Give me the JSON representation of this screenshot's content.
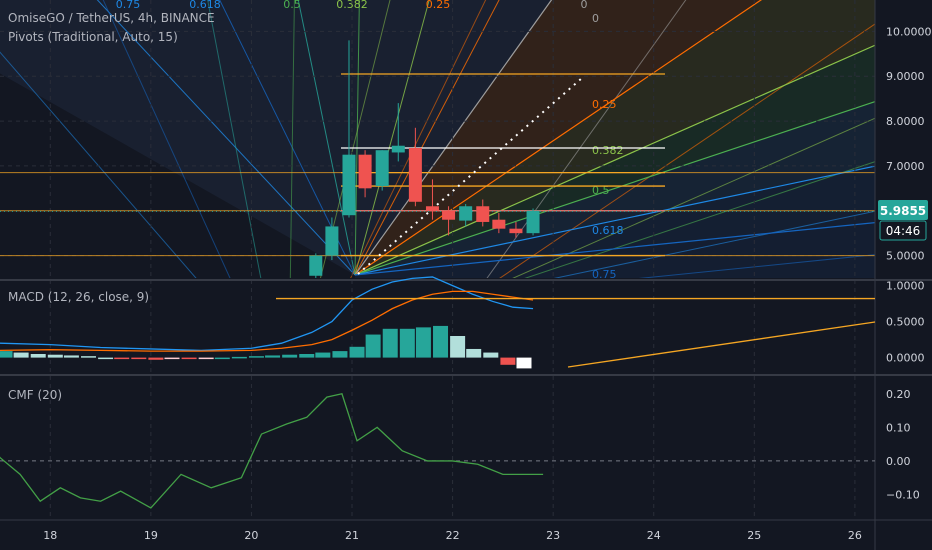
{
  "header": {
    "symbol_line": "OmiseGO / TetherUS, 4h, BINANCE",
    "pivots_line": "Pivots (Traditional, Auto, 15)"
  },
  "price_axis": {
    "ticks": [
      "10.0000",
      "9.0000",
      "8.0000",
      "7.0000",
      "6.0000",
      "5.0000"
    ],
    "last_price": "5.9855",
    "countdown": "04:46"
  },
  "macd_panel": {
    "title": "MACD (12, 26, close, 9)",
    "ticks": [
      "1.0000",
      "0.5000",
      "0.0000"
    ]
  },
  "cmf_panel": {
    "title": "CMF (20)",
    "ticks": [
      "0.20",
      "0.10",
      "0.00",
      "−0.10"
    ]
  },
  "time_axis": {
    "ticks": [
      "18",
      "19",
      "20",
      "21",
      "22",
      "23",
      "24",
      "25",
      "26"
    ]
  },
  "fib_fan_top_labels": [
    "0.75",
    "0.618",
    "0.5",
    "0.382",
    "0.25",
    "0"
  ],
  "fib_fan_right_labels": [
    "0",
    "0.25",
    "0.382",
    "0.5",
    "0.618",
    "0.75"
  ],
  "colors": {
    "background": "#131722",
    "bull": "#26a69a",
    "bear": "#ef5350",
    "pivot_line": "#f5a623",
    "cmf_line": "#43a047",
    "macd_line": "#2196f3",
    "signal_line": "#ff6d00",
    "last_price_bg": "#26a69a"
  },
  "chart_data": [
    {
      "type": "candlestick",
      "title": "OmiseGO / TetherUS, 4h, BINANCE",
      "x_range": [
        17.5,
        26.2
      ],
      "ylim": [
        4.5,
        10.7
      ],
      "last_price": 5.9855,
      "candles": [
        {
          "x": 20.64,
          "o": 4.55,
          "h": 5.05,
          "c": 5.0,
          "l": 4.5
        },
        {
          "x": 20.8,
          "o": 5.0,
          "h": 5.85,
          "c": 5.65,
          "l": 4.9
        },
        {
          "x": 20.97,
          "o": 5.9,
          "h": 9.8,
          "c": 7.25,
          "l": 5.85
        },
        {
          "x": 21.13,
          "o": 7.25,
          "h": 7.35,
          "c": 6.5,
          "l": 6.3
        },
        {
          "x": 21.3,
          "o": 6.55,
          "h": 7.35,
          "c": 7.35,
          "l": 6.45
        },
        {
          "x": 21.46,
          "o": 7.3,
          "h": 8.4,
          "c": 7.45,
          "l": 7.1
        },
        {
          "x": 21.63,
          "o": 7.4,
          "h": 7.85,
          "c": 6.2,
          "l": 6.1
        },
        {
          "x": 21.8,
          "o": 6.1,
          "h": 6.7,
          "c": 6.0,
          "l": 5.8
        },
        {
          "x": 21.96,
          "o": 6.0,
          "h": 6.1,
          "c": 5.8,
          "l": 5.45
        },
        {
          "x": 22.13,
          "o": 5.78,
          "h": 6.15,
          "c": 6.1,
          "l": 5.65
        },
        {
          "x": 22.3,
          "o": 6.1,
          "h": 6.25,
          "c": 5.75,
          "l": 5.65
        },
        {
          "x": 22.46,
          "o": 5.8,
          "h": 5.95,
          "c": 5.6,
          "l": 5.5
        },
        {
          "x": 22.63,
          "o": 5.6,
          "h": 5.75,
          "c": 5.5,
          "l": 5.4
        },
        {
          "x": 22.8,
          "o": 5.5,
          "h": 6.05,
          "c": 6.0,
          "l": 5.45
        }
      ],
      "pivot_levels": [
        9.05,
        7.4,
        6.85,
        6.55,
        6.0,
        5.0
      ]
    },
    {
      "type": "line",
      "title": "MACD (12, 26, close, 9)",
      "ylim": [
        -0.2,
        1.05
      ],
      "series": [
        {
          "kind": "macd",
          "x": [
            17.5,
            18.0,
            18.5,
            19.0,
            19.5,
            20.0,
            20.3,
            20.6,
            20.8,
            21.0,
            21.2,
            21.4,
            21.6,
            21.8,
            22.0,
            22.2,
            22.4,
            22.6,
            22.8
          ],
          "values": [
            0.2,
            0.18,
            0.14,
            0.12,
            0.1,
            0.13,
            0.2,
            0.35,
            0.5,
            0.8,
            0.95,
            1.05,
            1.1,
            1.12,
            1.0,
            0.88,
            0.78,
            0.7,
            0.68
          ]
        },
        {
          "kind": "signal",
          "x": [
            17.5,
            18.0,
            18.5,
            19.0,
            19.5,
            20.0,
            20.3,
            20.6,
            20.8,
            21.0,
            21.2,
            21.4,
            21.6,
            21.8,
            22.0,
            22.2,
            22.4,
            22.6,
            22.8
          ],
          "values": [
            0.1,
            0.11,
            0.1,
            0.09,
            0.09,
            0.1,
            0.13,
            0.18,
            0.25,
            0.38,
            0.52,
            0.68,
            0.8,
            0.88,
            0.92,
            0.92,
            0.88,
            0.84,
            0.8
          ]
        }
      ],
      "histogram": {
        "x": [
          17.55,
          17.71,
          17.88,
          18.05,
          18.21,
          18.38,
          18.55,
          18.71,
          18.88,
          19.05,
          19.21,
          19.38,
          19.55,
          19.71,
          19.88,
          20.05,
          20.21,
          20.38,
          20.55,
          20.71,
          20.88,
          21.05,
          21.21,
          21.38,
          21.55,
          21.71,
          21.88,
          22.05,
          22.21,
          22.38,
          22.55,
          22.71
        ],
        "values": [
          0.09,
          0.07,
          0.05,
          0.04,
          0.03,
          0.02,
          0.0,
          -0.02,
          -0.02,
          -0.03,
          -0.02,
          -0.02,
          -0.01,
          0.0,
          0.01,
          0.02,
          0.03,
          0.04,
          0.05,
          0.07,
          0.09,
          0.15,
          0.32,
          0.4,
          0.4,
          0.42,
          0.44,
          0.3,
          0.12,
          0.07,
          -0.1,
          -0.15
        ]
      },
      "guides": [
        0.82
      ]
    },
    {
      "type": "line",
      "title": "CMF (20)",
      "ylim": [
        -0.17,
        0.25
      ],
      "x": [
        17.25,
        17.5,
        17.7,
        17.9,
        18.1,
        18.3,
        18.5,
        18.7,
        19.0,
        19.3,
        19.6,
        19.9,
        20.1,
        20.35,
        20.55,
        20.75,
        20.9,
        21.05,
        21.25,
        21.5,
        21.75,
        22.0,
        22.25,
        22.5,
        22.75,
        22.9
      ],
      "values": [
        0.1,
        0.01,
        -0.04,
        -0.12,
        -0.08,
        -0.11,
        -0.12,
        -0.09,
        -0.14,
        -0.04,
        -0.08,
        -0.05,
        0.08,
        0.11,
        0.13,
        0.19,
        0.2,
        0.06,
        0.1,
        0.03,
        0.0,
        0.0,
        -0.01,
        -0.04,
        -0.04,
        -0.04
      ],
      "zero_line": true
    }
  ]
}
